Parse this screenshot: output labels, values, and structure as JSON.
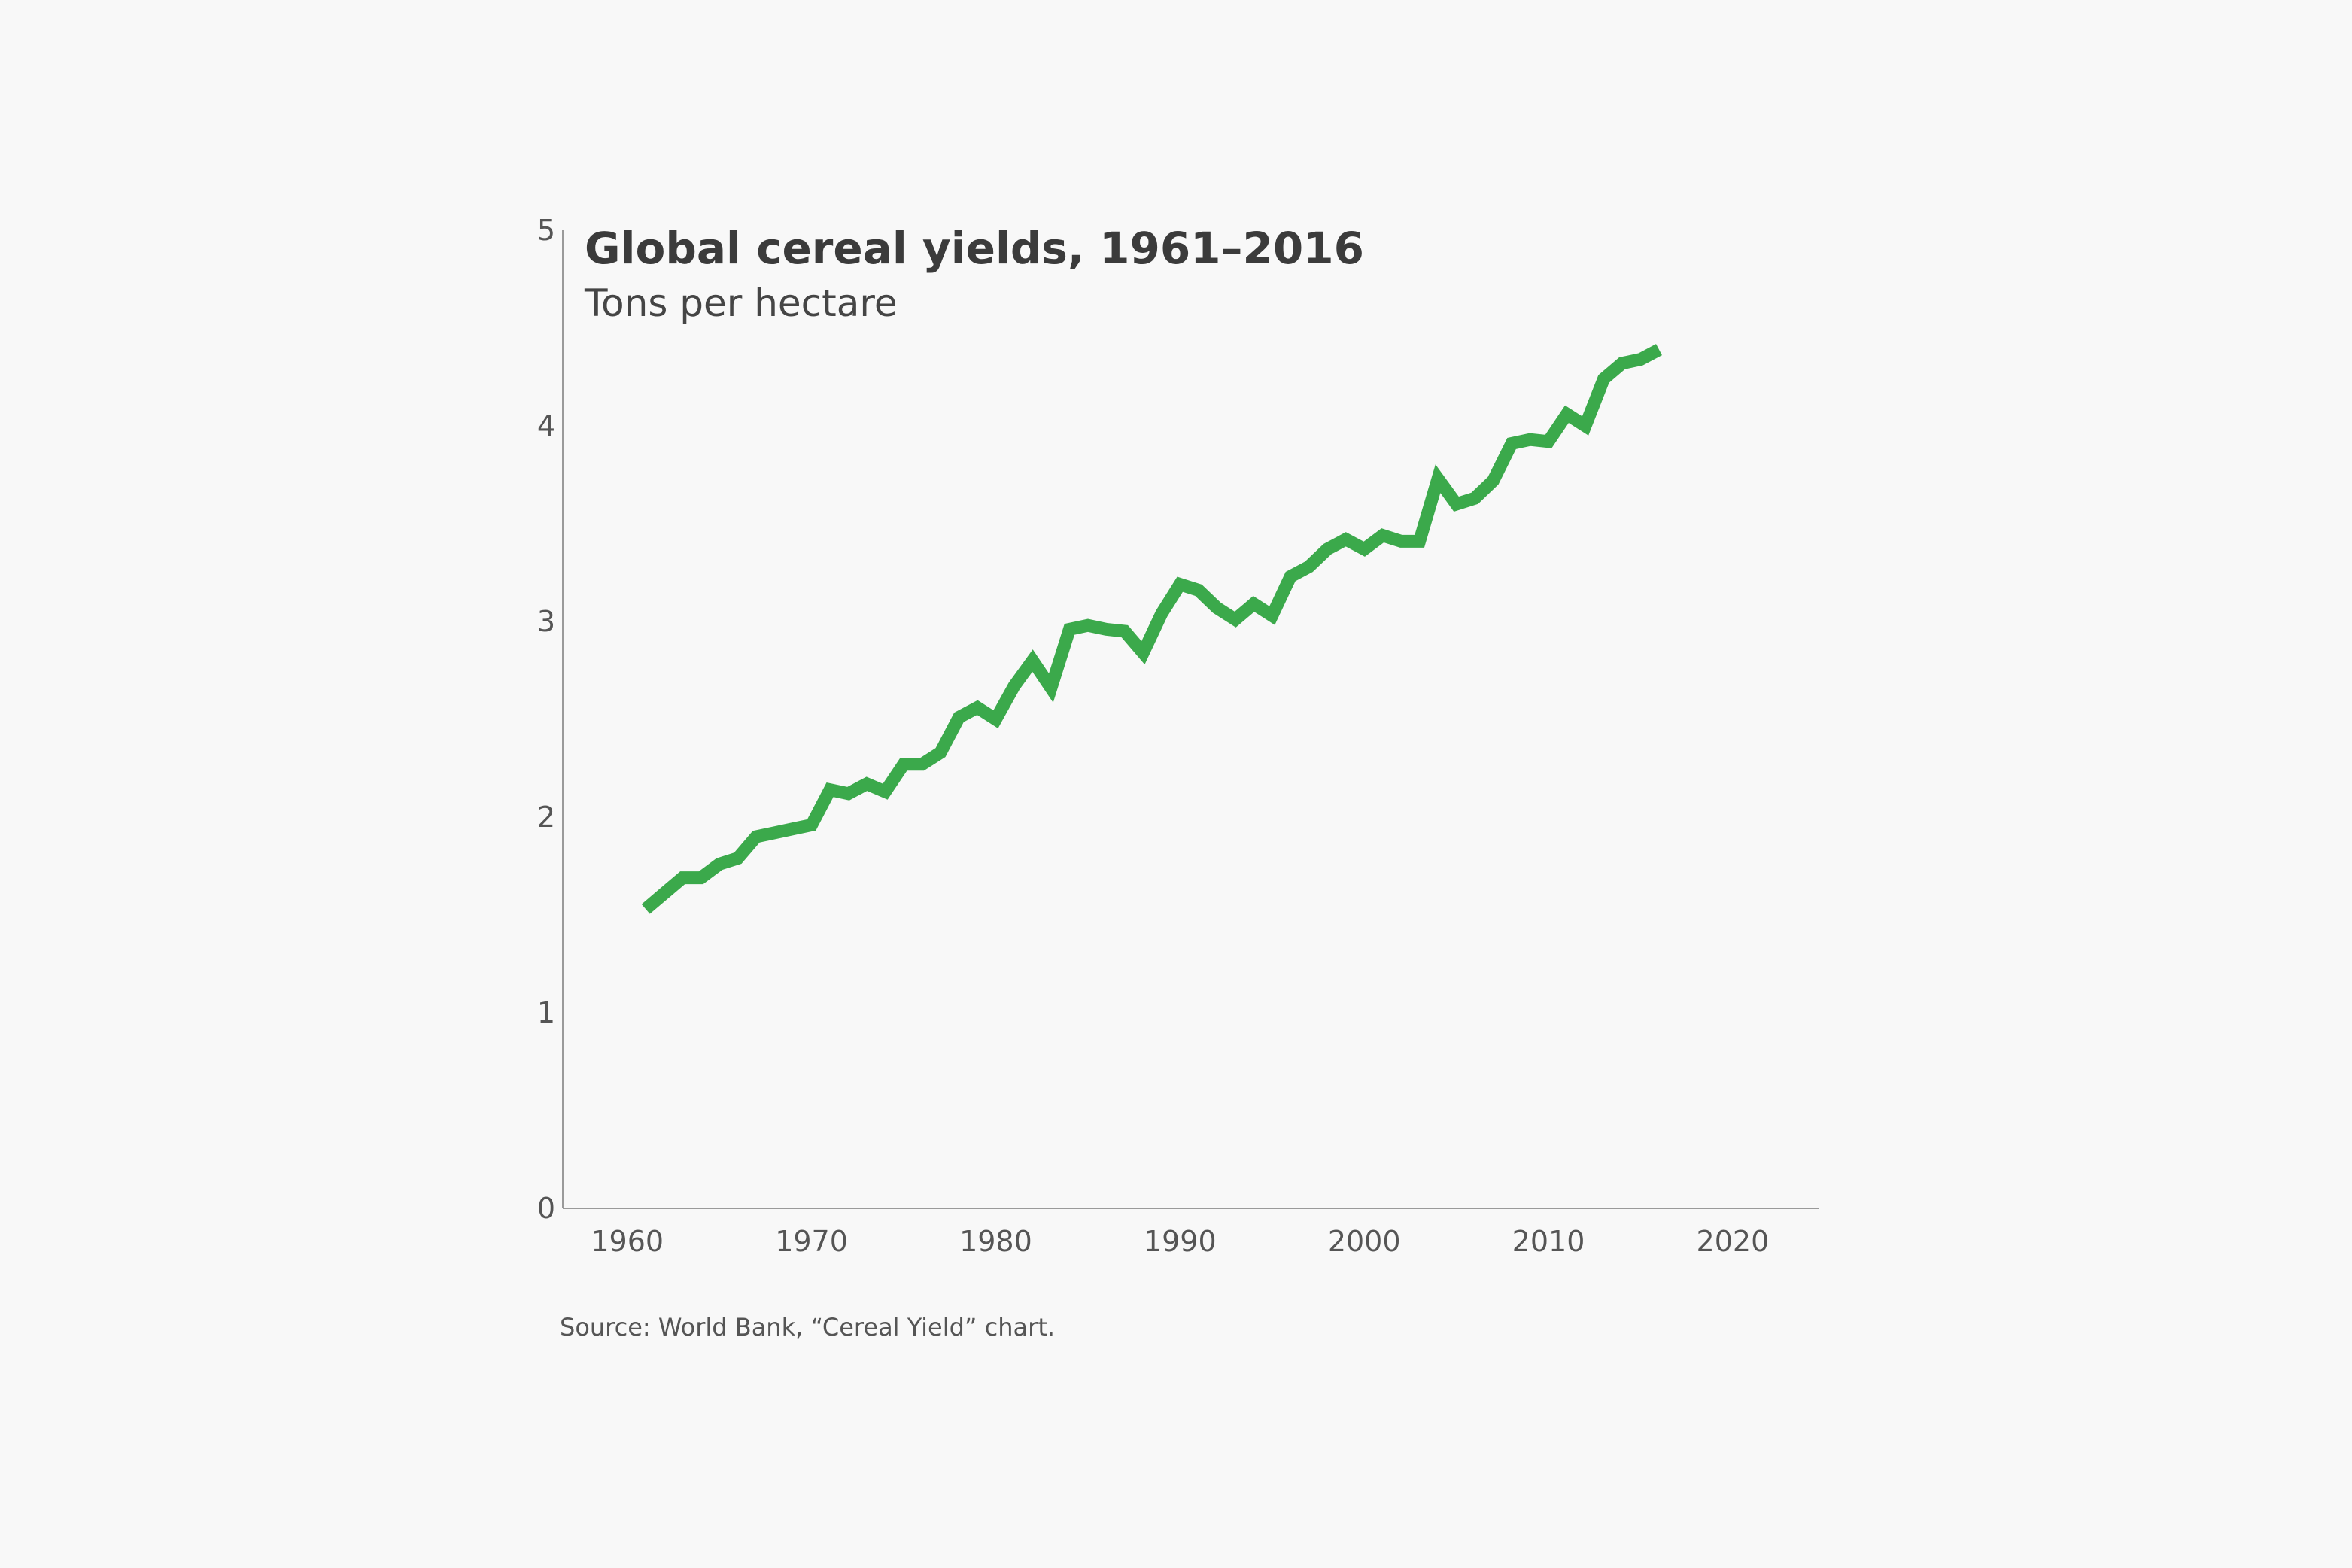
{
  "chart_data": {
    "type": "line",
    "title": "Global cereal yields, 1961–2016",
    "subtitle": "Tons per hectare",
    "source": "Source: World Bank, “Cereal Yield” chart.",
    "xlim": [
      1956.5,
      2024.7
    ],
    "ylim": [
      0,
      5
    ],
    "x_ticks": [
      1960,
      1970,
      1980,
      1990,
      2000,
      2010,
      2020
    ],
    "y_ticks": [
      0,
      1,
      2,
      3,
      4,
      5
    ],
    "grid": false,
    "line_color": "#3ba94b",
    "series": [
      {
        "x": [
          1961,
          1962,
          1963,
          1964,
          1965,
          1966,
          1967,
          1968,
          1969,
          1970,
          1971,
          1972,
          1973,
          1974,
          1975,
          1976,
          1977,
          1978,
          1979,
          1980,
          1981,
          1982,
          1983,
          1984,
          1985,
          1986,
          1987,
          1988,
          1989,
          1990,
          1991,
          1992,
          1993,
          1994,
          1995,
          1996,
          1997,
          1998,
          1999,
          2000,
          2001,
          2002,
          2003,
          2004,
          2005,
          2006,
          2007,
          2008,
          2009,
          2010,
          2011,
          2012,
          2013,
          2014,
          2015,
          2016
        ],
        "y": [
          1.53,
          1.61,
          1.69,
          1.69,
          1.76,
          1.79,
          1.9,
          1.92,
          1.94,
          1.96,
          2.14,
          2.12,
          2.17,
          2.13,
          2.27,
          2.27,
          2.33,
          2.51,
          2.56,
          2.5,
          2.67,
          2.8,
          2.66,
          2.96,
          2.98,
          2.96,
          2.95,
          2.84,
          3.04,
          3.19,
          3.16,
          3.07,
          3.01,
          3.09,
          3.03,
          3.23,
          3.28,
          3.37,
          3.42,
          3.37,
          3.44,
          3.41,
          3.41,
          3.73,
          3.6,
          3.63,
          3.72,
          3.91,
          3.93,
          3.92,
          4.06,
          4.0,
          4.24,
          4.32,
          4.34,
          4.39
        ]
      }
    ]
  }
}
